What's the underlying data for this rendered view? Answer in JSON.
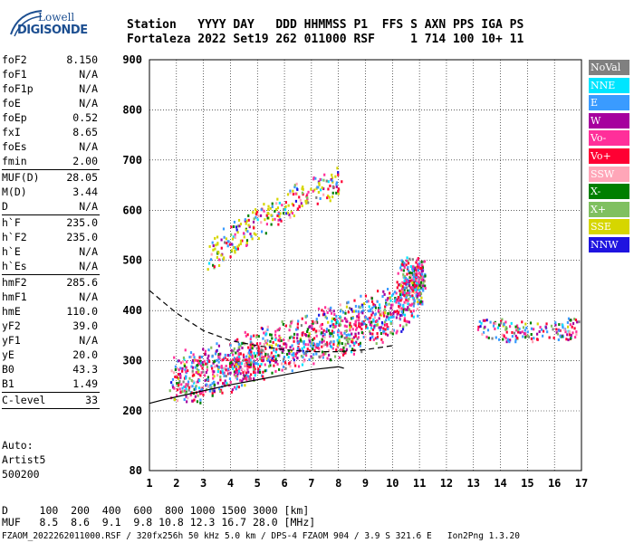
{
  "logo": {
    "line1": "Lowell",
    "line2": "DIGISONDE"
  },
  "header": {
    "line1": "Station   YYYY DAY   DDD HHMMSS P1  FFS S AXN PPS IGA PS",
    "line2": "Fortaleza 2022 Set19 262 011000 RSF     1 714 100 10+ 11"
  },
  "params_group1": [
    {
      "k": "foF2",
      "v": "8.150"
    },
    {
      "k": "foF1",
      "v": "N/A"
    },
    {
      "k": "foF1p",
      "v": "N/A"
    },
    {
      "k": "foE",
      "v": "N/A"
    },
    {
      "k": "foEp",
      "v": "0.52"
    },
    {
      "k": "fxI",
      "v": "8.65"
    },
    {
      "k": "foEs",
      "v": "N/A"
    },
    {
      "k": "fmin",
      "v": "2.00"
    }
  ],
  "params_group2": [
    {
      "k": "MUF(D)",
      "v": "28.05"
    },
    {
      "k": "M(D)",
      "v": "3.44"
    },
    {
      "k": "D",
      "v": "N/A"
    }
  ],
  "params_group3": [
    {
      "k": "h`F",
      "v": "235.0"
    },
    {
      "k": "h`F2",
      "v": "235.0"
    },
    {
      "k": "h`E",
      "v": "N/A"
    },
    {
      "k": "h`Es",
      "v": "N/A"
    }
  ],
  "params_group4": [
    {
      "k": "hmF2",
      "v": "285.6"
    },
    {
      "k": "hmF1",
      "v": "N/A"
    },
    {
      "k": "hmE",
      "v": "110.0"
    },
    {
      "k": "yF2",
      "v": "39.0"
    },
    {
      "k": "yF1",
      "v": "N/A"
    },
    {
      "k": "yE",
      "v": "20.0"
    },
    {
      "k": "B0",
      "v": "43.3"
    },
    {
      "k": "B1",
      "v": "1.49"
    }
  ],
  "params_group5": [
    {
      "k": "C-level",
      "v": "33"
    }
  ],
  "auto": {
    "l1": "Auto:",
    "l2": "Artist5",
    "l3": "500200"
  },
  "legend": [
    {
      "label": "NoVal",
      "color": "#808080"
    },
    {
      "label": "NNE",
      "color": "#00e5ff"
    },
    {
      "label": "E",
      "color": "#3a9bff"
    },
    {
      "label": "W",
      "color": "#a6009e"
    },
    {
      "label": "Vo-",
      "color": "#ff2f9a"
    },
    {
      "label": "Vo+",
      "color": "#ff0033"
    },
    {
      "label": "SSW",
      "color": "#ffa6b8"
    },
    {
      "label": "X-",
      "color": "#007f00"
    },
    {
      "label": "X+",
      "color": "#80c060"
    },
    {
      "label": "SSE",
      "color": "#d6d600"
    },
    {
      "label": "NNW",
      "color": "#1f14e0"
    }
  ],
  "bottom": {
    "line1": "D     100  200  400  600  800 1000 1500 3000 [km]",
    "line2": "MUF   8.5  8.6  9.1  9.8 10.8 12.3 16.7 28.0 [MHz]"
  },
  "footer": "FZAOM_2022262011000.RSF / 320fx256h 50 kHz 5.0 km / DPS-4 FZAOM 904 / 3.9 S 321.6 E   Ion2Png 1.3.20",
  "chart_data": {
    "type": "scatter",
    "xlim": [
      1,
      17
    ],
    "ylim": [
      80,
      900
    ],
    "x_ticks": [
      1,
      2,
      3,
      4,
      5,
      6,
      7,
      8,
      9,
      10,
      11,
      12,
      13,
      14,
      15,
      16,
      17
    ],
    "y_ticks": [
      80,
      200,
      300,
      400,
      500,
      600,
      700,
      800,
      900
    ],
    "grid": true,
    "legend_placement": "right",
    "traces": [
      {
        "name": "F2 trace",
        "x": [
          1.8,
          2.5,
          3.2,
          4.0,
          4.6,
          5.2,
          6.0,
          6.8,
          7.5,
          8.2,
          8.8,
          9.5,
          10.2,
          10.8,
          11.1
        ],
        "y": [
          240,
          250,
          258,
          272,
          285,
          300,
          312,
          325,
          335,
          345,
          355,
          368,
          390,
          420,
          445
        ]
      },
      {
        "name": "upper cluster",
        "x": [
          3.2,
          3.8,
          4.5,
          5.2,
          5.8,
          6.5,
          7.3,
          8.0
        ],
        "y": [
          510,
          535,
          560,
          585,
          605,
          625,
          645,
          660
        ]
      },
      {
        "name": "high echoes",
        "x": [
          10.2,
          10.6,
          11.0
        ],
        "y": [
          460,
          470,
          455
        ]
      },
      {
        "name": "right patches",
        "x": [
          13.3,
          14.4,
          16.2,
          16.7
        ],
        "y": [
          370,
          360,
          360,
          370
        ]
      }
    ],
    "profile_solid": {
      "x": [
        1.0,
        1.5,
        2.0,
        3.0,
        4.0,
        5.0,
        6.0,
        7.0,
        8.0,
        8.2
      ],
      "y": [
        215,
        222,
        228,
        240,
        252,
        262,
        272,
        282,
        288,
        285
      ]
    },
    "profile_dashed": {
      "x": [
        1.0,
        2.0,
        3.0,
        4.0,
        5.0,
        6.0,
        7.0,
        8.0,
        9.0,
        10.0
      ],
      "y": [
        440,
        395,
        360,
        340,
        330,
        322,
        318,
        318,
        322,
        330
      ]
    }
  }
}
